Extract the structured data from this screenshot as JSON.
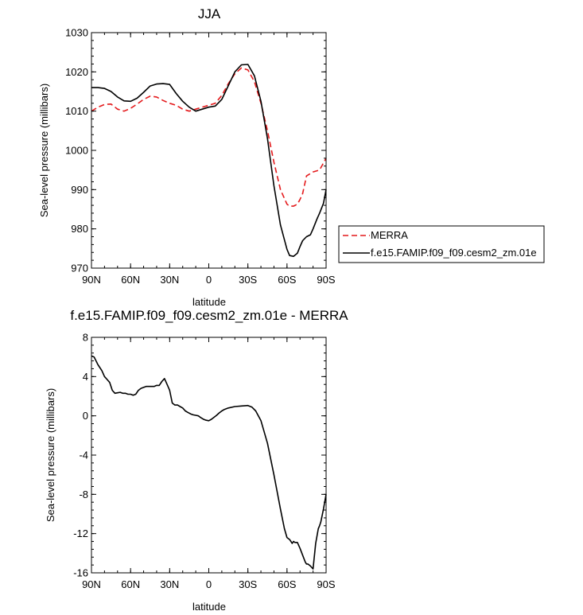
{
  "chart_data": [
    {
      "type": "line",
      "title": "JJA",
      "xlabel": "latitude",
      "ylabel": "Sea-level pressure (millibars)",
      "x_ticks": [
        "90N",
        "60N",
        "30N",
        "0",
        "30S",
        "60S",
        "90S"
      ],
      "x_tick_values": [
        -90,
        -60,
        -30,
        0,
        30,
        60,
        90
      ],
      "xlim": [
        -90,
        90
      ],
      "y_ticks": [
        "970",
        "980",
        "990",
        "1000",
        "1010",
        "1020",
        "1030"
      ],
      "y_tick_values": [
        970,
        980,
        990,
        1000,
        1010,
        1020,
        1030
      ],
      "ylim": [
        970,
        1030
      ],
      "legend": "right",
      "series": [
        {
          "name": "MERRA",
          "color": "#e41a1c",
          "style": "dashed",
          "x": [
            -90,
            -85,
            -80,
            -75,
            -70,
            -65,
            -60,
            -55,
            -50,
            -45,
            -40,
            -35,
            -30,
            -25,
            -20,
            -15,
            -10,
            -5,
            0,
            5,
            10,
            15,
            20,
            25,
            30,
            35,
            40,
            45,
            50,
            55,
            60,
            62,
            65,
            68,
            70,
            72,
            75,
            80,
            85,
            90
          ],
          "y": [
            1010,
            1011,
            1011.7,
            1011.8,
            1010.5,
            1010,
            1010.7,
            1011.8,
            1013,
            1013.8,
            1013.6,
            1012.7,
            1012,
            1011.5,
            1010.5,
            1010,
            1010.5,
            1011,
            1011.5,
            1012,
            1014,
            1017,
            1019.5,
            1021,
            1020.5,
            1017.5,
            1012,
            1005,
            997,
            990,
            986.3,
            985.8,
            985.8,
            986.3,
            987.5,
            989,
            993.5,
            994.5,
            995,
            998
          ]
        },
        {
          "name": "f.e15.FAMIP.f09_f09.cesm2_zm.01e",
          "color": "#000000",
          "style": "solid",
          "x": [
            -90,
            -85,
            -80,
            -75,
            -70,
            -65,
            -60,
            -55,
            -50,
            -45,
            -40,
            -35,
            -30,
            -25,
            -20,
            -15,
            -10,
            -5,
            0,
            5,
            10,
            15,
            20,
            25,
            30,
            35,
            40,
            45,
            50,
            55,
            60,
            62,
            65,
            68,
            70,
            72,
            75,
            78,
            80,
            83,
            85,
            88,
            90
          ],
          "y": [
            1016,
            1016,
            1015.8,
            1015,
            1013.6,
            1012.6,
            1012.5,
            1013.3,
            1014.8,
            1016.4,
            1016.9,
            1017,
            1016.8,
            1014.5,
            1012.5,
            1011,
            1010,
            1010.5,
            1011,
            1011.3,
            1013,
            1016.5,
            1020,
            1021.8,
            1021.9,
            1019,
            1012.5,
            1003,
            991,
            981,
            974.8,
            973.2,
            973,
            973.8,
            975.5,
            977,
            978,
            978.5,
            980,
            982.5,
            984,
            986.5,
            990
          ]
        }
      ]
    },
    {
      "type": "line",
      "title": "f.e15.FAMIP.f09_f09.cesm2_zm.01e - MERRA",
      "xlabel": "latitude",
      "ylabel": "Sea-level pressure (millibars)",
      "x_ticks": [
        "90N",
        "60N",
        "30N",
        "0",
        "30S",
        "60S",
        "90S"
      ],
      "x_tick_values": [
        -90,
        -60,
        -30,
        0,
        30,
        60,
        90
      ],
      "xlim": [
        -90,
        90
      ],
      "y_ticks": [
        "-16",
        "-12",
        "-8",
        "-4",
        "0",
        "4",
        "8"
      ],
      "y_tick_values": [
        -16,
        -12,
        -8,
        -4,
        0,
        4,
        8
      ],
      "ylim": [
        -16,
        8
      ],
      "series": [
        {
          "color": "#000000",
          "style": "solid",
          "x": [
            -90,
            -88,
            -85,
            -82,
            -80,
            -78,
            -76,
            -74,
            -72,
            -70,
            -68,
            -66,
            -64,
            -62,
            -60,
            -58,
            -56,
            -54,
            -52,
            -50,
            -48,
            -46,
            -44,
            -42,
            -40,
            -38,
            -36,
            -34,
            -32,
            -30,
            -28,
            -26,
            -24,
            -22,
            -20,
            -18,
            -16,
            -14,
            -12,
            -10,
            -8,
            -6,
            -4,
            -2,
            0,
            2,
            4,
            6,
            8,
            10,
            12,
            15,
            20,
            25,
            30,
            33,
            36,
            40,
            45,
            50,
            55,
            58,
            60,
            62,
            64,
            65,
            66,
            68,
            70,
            72,
            74,
            75,
            76,
            78,
            80,
            82,
            84,
            85,
            86,
            88,
            90
          ],
          "y": [
            6.1,
            6,
            5.2,
            4.6,
            4,
            3.7,
            3.4,
            2.6,
            2.3,
            2.35,
            2.4,
            2.3,
            2.3,
            2.2,
            2.2,
            2.1,
            2.2,
            2.6,
            2.8,
            2.9,
            3,
            3,
            3,
            3,
            3.1,
            3.1,
            3.5,
            3.8,
            3.2,
            2.6,
            1.3,
            1.1,
            1.1,
            0.95,
            0.8,
            0.5,
            0.35,
            0.2,
            0.1,
            0.05,
            0,
            -0.2,
            -0.35,
            -0.45,
            -0.5,
            -0.35,
            -0.15,
            0.05,
            0.3,
            0.5,
            0.65,
            0.8,
            0.95,
            1.0,
            1.05,
            0.9,
            0.5,
            -0.5,
            -2.8,
            -6,
            -9.5,
            -11.5,
            -12.4,
            -12.6,
            -13.0,
            -12.8,
            -12.9,
            -12.9,
            -13.5,
            -14.2,
            -14.9,
            -15.1,
            -15.1,
            -15.3,
            -15.6,
            -13,
            -11.5,
            -11.2,
            -10.8,
            -9.5,
            -8.0
          ]
        }
      ]
    }
  ]
}
